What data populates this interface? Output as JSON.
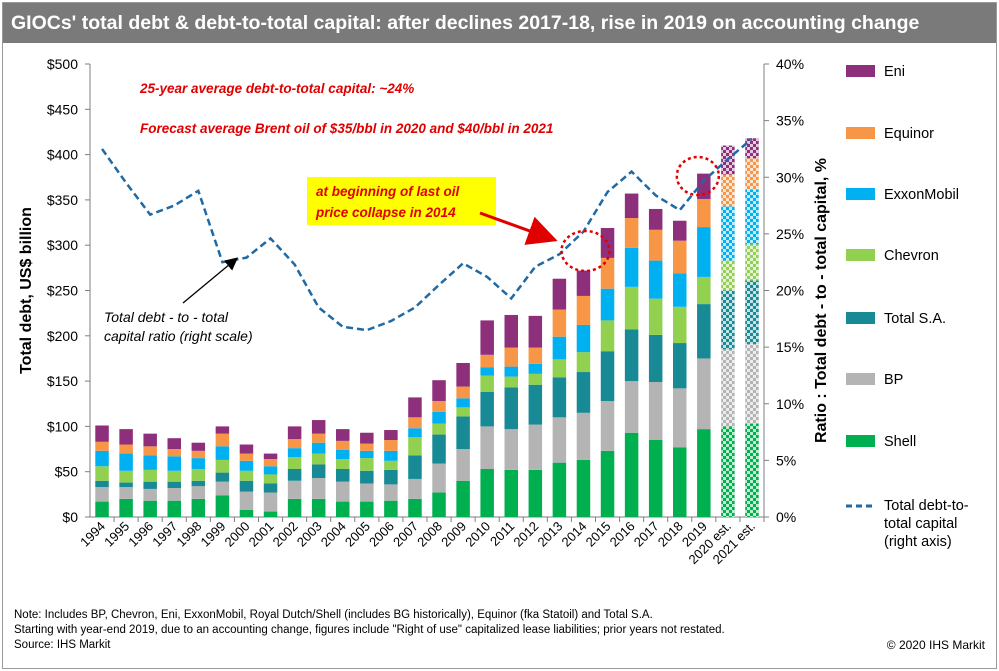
{
  "title": "GIOCs' total debt & debt-to-total capital: after declines 2017-18, rise in 2019 on accounting change",
  "notes": [
    "Note: Includes  BP, Chevron,  Eni, ExxonMobil, Royal Dutch/Shell (includes BG historically), Equinor (fka Statoil) and Total S.A.",
    "Starting with year-end 2019, due to an accounting change, figures include \"Right of use\" capitalized lease liabilities; prior years not restated.",
    "Source:  IHS Markit"
  ],
  "copyright": "© 2020 IHS Markit",
  "chart_data": {
    "type": "bar",
    "stacked": true,
    "categories": [
      "1994",
      "1995",
      "1996",
      "1997",
      "1998",
      "1999",
      "2000",
      "2001",
      "2002",
      "2003",
      "2004",
      "2005",
      "2006",
      "2007",
      "2008",
      "2009",
      "2010",
      "2011",
      "2012",
      "2013",
      "2014",
      "2015",
      "2016",
      "2017",
      "2018",
      "2019",
      "2020 est.",
      "2021 est."
    ],
    "estimate_categories": [
      "2020 est.",
      "2021 est."
    ],
    "series": [
      {
        "name": "Shell",
        "color": "#00b050",
        "values": [
          17,
          20,
          18,
          18,
          20,
          24,
          8,
          6,
          20,
          20,
          17,
          17,
          18,
          20,
          27,
          40,
          53,
          52,
          52,
          60,
          63,
          73,
          93,
          85,
          77,
          97,
          100,
          103
        ]
      },
      {
        "name": "BP",
        "color": "#b4b4b4",
        "values": [
          16,
          13,
          13,
          14,
          14,
          15,
          20,
          21,
          20,
          23,
          22,
          20,
          18,
          22,
          32,
          35,
          47,
          45,
          50,
          50,
          52,
          55,
          57,
          64,
          65,
          78,
          85,
          88
        ]
      },
      {
        "name": "Total S.A.",
        "color": "#178a96",
        "values": [
          7,
          5,
          8,
          7,
          6,
          10,
          12,
          10,
          13,
          15,
          14,
          14,
          16,
          26,
          32,
          36,
          38,
          46,
          44,
          44,
          45,
          55,
          57,
          52,
          50,
          60,
          65,
          70
        ]
      },
      {
        "name": "Chevron",
        "color": "#92d050",
        "values": [
          16,
          13,
          13,
          12,
          13,
          14,
          11,
          10,
          13,
          12,
          11,
          14,
          10,
          20,
          12,
          10,
          18,
          12,
          12,
          20,
          22,
          34,
          47,
          40,
          40,
          30,
          33,
          40
        ]
      },
      {
        "name": "ExxonMobil",
        "color": "#00b0f0",
        "values": [
          17,
          19,
          16,
          16,
          12,
          15,
          11,
          9,
          10,
          12,
          10,
          8,
          11,
          10,
          13,
          10,
          9,
          11,
          11,
          25,
          30,
          35,
          43,
          42,
          37,
          55,
          60,
          60
        ]
      },
      {
        "name": "Equinor",
        "color": "#f79646",
        "values": [
          10,
          10,
          10,
          8,
          8,
          14,
          8,
          8,
          10,
          10,
          10,
          8,
          12,
          12,
          12,
          13,
          14,
          21,
          18,
          30,
          32,
          34,
          33,
          34,
          36,
          31,
          35,
          35
        ]
      },
      {
        "name": "Eni",
        "color": "#8e2f7c",
        "values": [
          18,
          17,
          14,
          12,
          9,
          8,
          10,
          6,
          14,
          15,
          13,
          12,
          11,
          22,
          23,
          26,
          38,
          36,
          35,
          34,
          28,
          33,
          27,
          23,
          22,
          28,
          32,
          22
        ]
      }
    ],
    "line": {
      "name": "Total debt-to-total capital (right axis)",
      "color": "#1f6aa5",
      "values": [
        32.5,
        29.5,
        26.7,
        27.5,
        28.8,
        22.5,
        22.9,
        24.6,
        22.3,
        18.5,
        16.8,
        16.5,
        17.3,
        18.5,
        20.5,
        22.4,
        21.2,
        19.3,
        22.1,
        23.2,
        25.2,
        28.7,
        30.5,
        28.4,
        27.1,
        29.7,
        31.6,
        33.4
      ]
    },
    "ylabel": "Total  debt, US$  billion",
    "ylabel_right": "Ratio : Total debt - to - total  capital, %",
    "ylim": [
      0,
      500
    ],
    "y_ticks": [
      "$0",
      "$50",
      "$100",
      "$150",
      "$200",
      "$250",
      "$300",
      "$350",
      "$400",
      "$450",
      "$500"
    ],
    "ylim_right": [
      0,
      40
    ],
    "y_ticks_right": [
      "0%",
      "5%",
      "10%",
      "15%",
      "20%",
      "25%",
      "30%",
      "35%",
      "40%"
    ],
    "legend": [
      "Eni",
      "Equinor",
      "ExxonMobil",
      "Chevron",
      "Total S.A.",
      "BP",
      "Shell",
      "Total debt-to-total capital (right axis)"
    ],
    "legend_position": "right",
    "annotations": {
      "avg_ratio": "25-year average debt-to-total capital:  ~24%",
      "forecast": "Forecast average Brent oil  of  $35/bbl in 2020 and $40/bbl in 2021",
      "callout": [
        "at beginning of last oil",
        "price collapse in 2014"
      ],
      "line_label": [
        "Total debt - to - total",
        "capital ratio (right scale)"
      ]
    },
    "line_legend_lines": [
      "Total debt-to-",
      "total capital",
      "(right axis)"
    ]
  }
}
